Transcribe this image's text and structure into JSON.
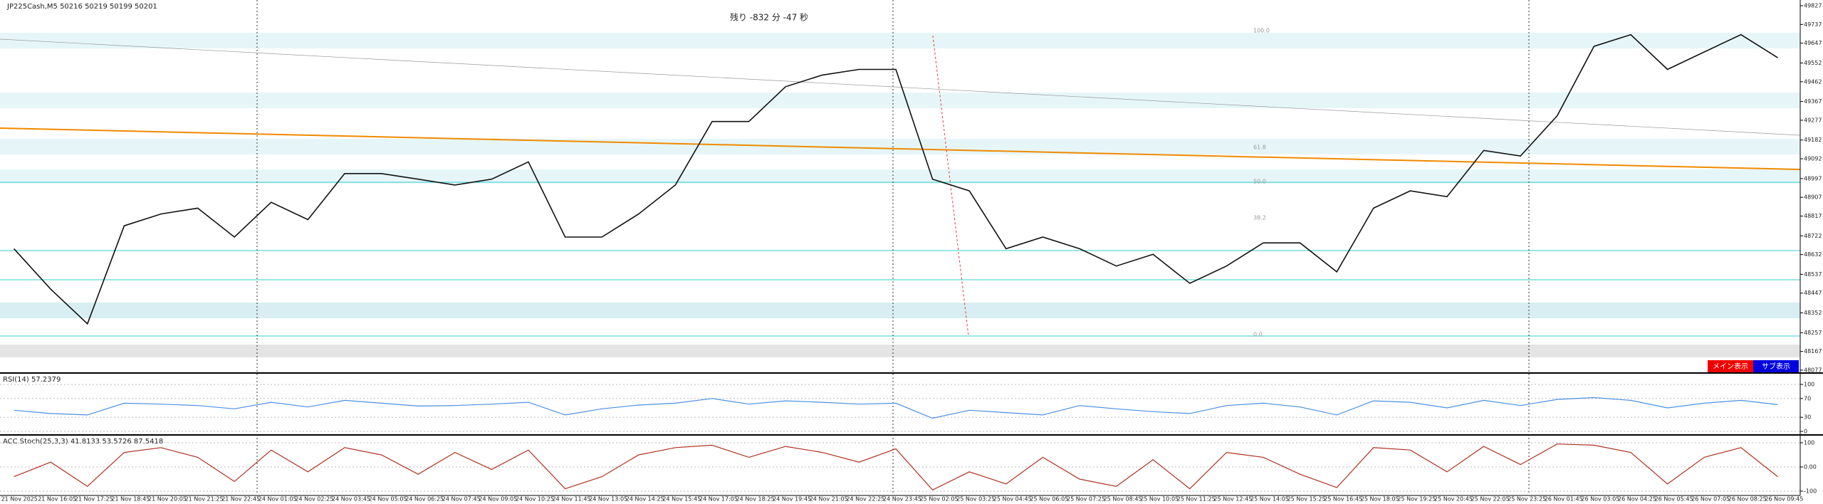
{
  "chart_data": [
    {
      "type": "line",
      "title": "JP225Cash,M5  50216 50219 50199 50201",
      "annotation": "残り -832 分 -47 秒",
      "fib_labels": [
        "100.0",
        "61.8",
        "50.0",
        "38.2",
        "0.0"
      ],
      "categories": [
        "21 Nov 2025",
        "21 Nov 16:05",
        "21 Nov 17:25",
        "21 Nov 18:45",
        "21 Nov 20:05",
        "21 Nov 21:25",
        "21 Nov 22:45",
        "24 Nov 01:05",
        "24 Nov 02:25",
        "24 Nov 03:45",
        "24 Nov 05:05",
        "24 Nov 06:25",
        "24 Nov 07:45",
        "24 Nov 09:05",
        "24 Nov 10:25",
        "24 Nov 11:45",
        "24 Nov 13:05",
        "24 Nov 14:25",
        "24 Nov 15:45",
        "24 Nov 17:05",
        "24 Nov 18:25",
        "24 Nov 19:45",
        "24 Nov 21:05",
        "24 Nov 22:25",
        "24 Nov 23:45",
        "25 Nov 02:05",
        "25 Nov 03:25",
        "25 Nov 04:45",
        "25 Nov 06:05",
        "25 Nov 07:25",
        "25 Nov 08:45",
        "25 Nov 10:05",
        "25 Nov 11:25",
        "25 Nov 12:45",
        "25 Nov 14:05",
        "25 Nov 15:25",
        "25 Nov 16:45",
        "25 Nov 18:05",
        "25 Nov 19:25",
        "25 Nov 20:45",
        "25 Nov 22:05",
        "25 Nov 23:25",
        "26 Nov 01:45",
        "26 Nov 03:05",
        "26 Nov 04:25",
        "26 Nov 05:45",
        "26 Nov 07:05",
        "26 Nov 08:25",
        "26 Nov 09:45"
      ],
      "series": [
        {
          "color": "#111111",
          "values": [
            48660,
            48466,
            48300,
            48770,
            48827,
            48855,
            48716,
            48883,
            48800,
            49021,
            49021,
            48994,
            48966,
            48994,
            49077,
            48716,
            48716,
            48827,
            48966,
            49271,
            49271,
            49438,
            49494,
            49521,
            49521,
            48994,
            48938,
            48660,
            48716,
            48660,
            48577,
            48633,
            48494,
            48577,
            48688,
            48688,
            48549,
            48855,
            48938,
            48910,
            49132,
            49105,
            49299,
            49632,
            49688,
            49521,
            49605,
            49688,
            49577
          ]
        }
      ],
      "ylim": [
        48077,
        49827
      ],
      "yticks": [
        49827,
        49737,
        49647,
        49552,
        49462,
        49367,
        49277,
        49182,
        49092,
        48997,
        48907,
        48817,
        48722,
        48632,
        48537,
        48447,
        48352,
        48257,
        48167,
        48077
      ]
    },
    {
      "type": "line",
      "title": "RSI(14) 57.2379",
      "series": [
        {
          "color": "#4a90e2",
          "values": [
            45,
            38,
            35,
            60,
            58,
            55,
            48,
            62,
            52,
            66,
            60,
            54,
            55,
            58,
            62,
            35,
            48,
            56,
            60,
            70,
            58,
            65,
            62,
            58,
            60,
            28,
            45,
            40,
            35,
            55,
            48,
            42,
            38,
            55,
            60,
            52,
            35,
            65,
            62,
            50,
            66,
            55,
            68,
            72,
            66,
            50,
            60,
            66,
            57
          ]
        }
      ],
      "ylim": [
        0,
        100
      ],
      "yticks": [
        100,
        70,
        30,
        0
      ]
    },
    {
      "type": "line",
      "title": "ACC Stoch(25,3,3) 41.8133 53.5726 87.5418",
      "series": [
        {
          "color": "#b03020",
          "values": [
            -40,
            20,
            -80,
            60,
            80,
            40,
            -60,
            70,
            -20,
            80,
            50,
            -30,
            60,
            -10,
            70,
            -90,
            -40,
            50,
            80,
            90,
            40,
            85,
            60,
            20,
            75,
            -95,
            -20,
            -70,
            40,
            -50,
            -80,
            30,
            -90,
            60,
            40,
            -30,
            -85,
            80,
            70,
            -20,
            85,
            10,
            95,
            90,
            60,
            -70,
            40,
            80,
            -40
          ]
        }
      ],
      "ylim": [
        -100,
        100
      ],
      "yticks": [
        100,
        {
          "value": 0,
          "label": "0.00"
        },
        -100
      ]
    }
  ],
  "buttons": [
    "メイン表示",
    "サブ表示"
  ]
}
